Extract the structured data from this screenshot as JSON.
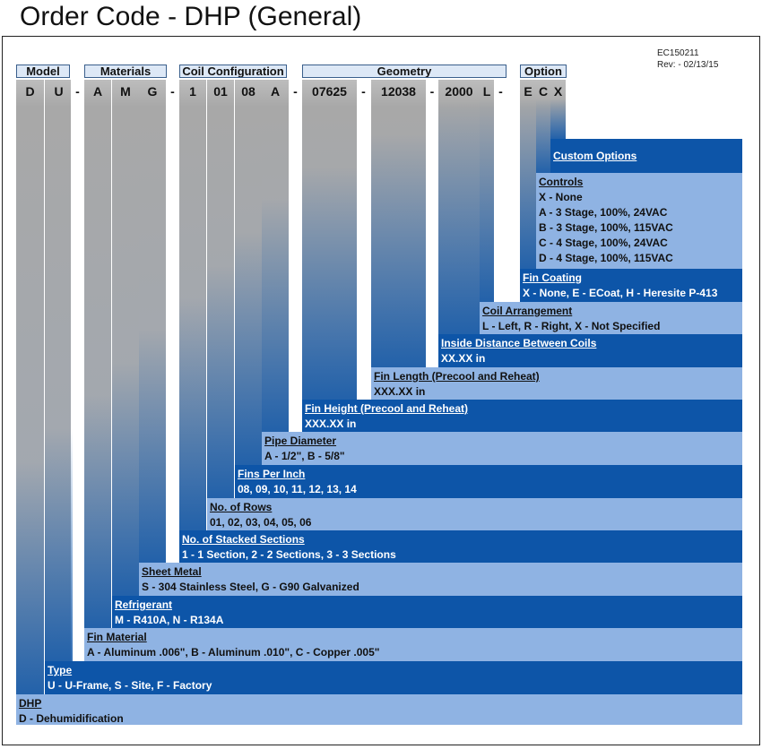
{
  "title": "Order Code - DHP (General)",
  "doc_info": {
    "code": "EC150211",
    "rev": "Rev: - 02/13/15"
  },
  "headers": {
    "model": "Model",
    "materials": "Materials",
    "coil_configuration": "Coil Configuration",
    "geometry": "Geometry",
    "option": "Option"
  },
  "code_chars": [
    "D",
    "U",
    "-",
    "A",
    "M",
    "G",
    "-",
    "1",
    "01",
    "08",
    "A",
    "-",
    "07625",
    "-",
    "12038",
    "-",
    "2000",
    "L",
    "-",
    "E",
    "C",
    "X"
  ],
  "options": [
    {
      "title": "Custom Options",
      "lines": []
    },
    {
      "title": "Controls",
      "lines": [
        "X - None",
        "A - 3 Stage, 100%, 24VAC",
        "B - 3 Stage, 100%, 115VAC",
        "C - 4 Stage, 100%, 24VAC",
        "D - 4 Stage, 100%, 115VAC"
      ]
    },
    {
      "title": "Fin Coating",
      "lines": [
        "X - None, E - ECoat, H - Heresite P-413"
      ]
    },
    {
      "title": "Coil Arrangement",
      "lines": [
        "L - Left, R - Right, X - Not Specified"
      ]
    },
    {
      "title": "Inside Distance Between Coils",
      "lines": [
        "XX.XX in"
      ]
    },
    {
      "title": "Fin Length (Precool and Reheat)",
      "lines": [
        "XXX.XX in"
      ]
    },
    {
      "title": "Fin Height (Precool and Reheat)",
      "lines": [
        "XXX.XX in"
      ]
    },
    {
      "title": "Pipe Diameter",
      "lines": [
        "A - 1/2\", B - 5/8\""
      ]
    },
    {
      "title": "Fins Per Inch",
      "lines": [
        "08, 09, 10, 11, 12, 13, 14"
      ]
    },
    {
      "title": "No. of Rows",
      "lines": [
        "01, 02, 03, 04, 05, 06"
      ]
    },
    {
      "title": "No. of Stacked Sections",
      "lines": [
        "1 - 1 Section, 2 - 2 Sections, 3 - 3 Sections"
      ]
    },
    {
      "title": "Sheet Metal",
      "lines": [
        "S - 304 Stainless Steel, G - G90 Galvanized"
      ]
    },
    {
      "title": "Refrigerant",
      "lines": [
        "M - R410A, N - R134A"
      ]
    },
    {
      "title": "Fin Material",
      "lines": [
        "A - Aluminum .006\", B - Aluminum .010\", C - Copper .005\""
      ]
    },
    {
      "title": "Type",
      "lines": [
        "U - U-Frame, S - Site, F - Factory"
      ]
    },
    {
      "title": "DHP",
      "lines": [
        "D - Dehumidification"
      ]
    }
  ]
}
